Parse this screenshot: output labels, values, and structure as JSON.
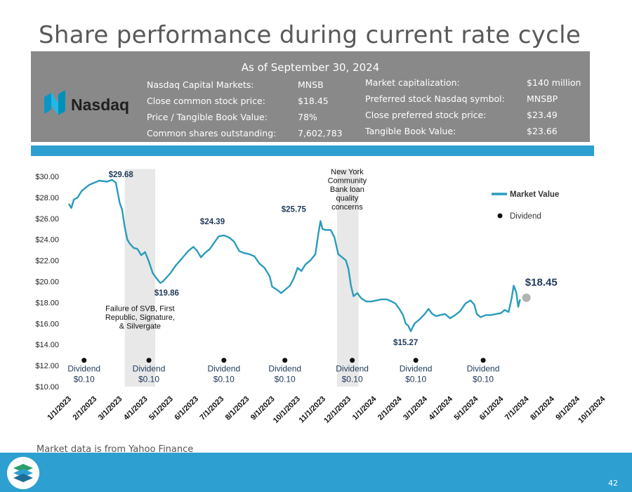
{
  "title": "Share performance during current rate cycle",
  "info": {
    "as_of": "As of September 30, 2024",
    "logo_text": "Nasdaq",
    "left_labels": [
      "Nasdaq Capital Markets:",
      "Close common stock price:",
      "Price / Tangible Book Value:",
      "Common shares outstanding:"
    ],
    "left_values": [
      "MNSB",
      "$18.45",
      "78%",
      "7,602,783"
    ],
    "right_labels": [
      "Market capitalization:",
      "Preferred stock Nasdaq symbol:",
      "Close preferred stock price:",
      "Tangible Book Value:"
    ],
    "right_values": [
      "$140 million",
      "MNSBP",
      "$23.49",
      "$23.66"
    ]
  },
  "chart_data": {
    "type": "line",
    "title": "",
    "xlabel": "",
    "ylabel": "",
    "ylim": [
      10,
      30
    ],
    "yticks": [
      "$10.00",
      "$12.00",
      "$14.00",
      "$16.00",
      "$18.00",
      "$20.00",
      "$22.00",
      "$24.00",
      "$26.00",
      "$28.00",
      "$30.00"
    ],
    "xticks": [
      "1/1/2023",
      "2/1/2023",
      "3/1/2023",
      "4/1/2023",
      "5/1/2023",
      "6/1/2023",
      "7/1/2023",
      "8/1/2023",
      "9/1/2023",
      "10/1/2023",
      "11/1/2023",
      "12/1/2023",
      "1/1/2024",
      "2/1/2024",
      "3/1/2024",
      "4/1/2024",
      "5/1/2024",
      "6/1/2024",
      "7/1/2024",
      "8/1/2024",
      "9/1/2024",
      "10/1/2024"
    ],
    "legend": {
      "market_value": "Market Value",
      "dividend": "Dividend"
    },
    "series": [
      {
        "name": "Market Value",
        "color": "#2a9cbb",
        "points": [
          [
            0,
            27.4
          ],
          [
            0.1,
            27.0
          ],
          [
            0.2,
            27.8
          ],
          [
            0.35,
            28.0
          ],
          [
            0.5,
            28.6
          ],
          [
            0.65,
            28.9
          ],
          [
            0.8,
            29.2
          ],
          [
            1.0,
            29.4
          ],
          [
            1.2,
            29.6
          ],
          [
            1.5,
            29.5
          ],
          [
            1.7,
            29.68
          ],
          [
            1.85,
            29.4
          ],
          [
            2.0,
            27.5
          ],
          [
            2.1,
            26.8
          ],
          [
            2.2,
            25.2
          ],
          [
            2.3,
            24.0
          ],
          [
            2.4,
            23.6
          ],
          [
            2.55,
            23.2
          ],
          [
            2.7,
            23.1
          ],
          [
            2.85,
            22.5
          ],
          [
            3.0,
            22.8
          ],
          [
            3.15,
            21.9
          ],
          [
            3.3,
            20.8
          ],
          [
            3.45,
            20.3
          ],
          [
            3.6,
            19.86
          ],
          [
            3.7,
            20.0
          ],
          [
            3.85,
            20.4
          ],
          [
            4.0,
            20.8
          ],
          [
            4.2,
            21.5
          ],
          [
            4.45,
            22.2
          ],
          [
            4.7,
            22.9
          ],
          [
            4.9,
            23.3
          ],
          [
            5.05,
            22.9
          ],
          [
            5.2,
            22.3
          ],
          [
            5.35,
            22.7
          ],
          [
            5.55,
            23.1
          ],
          [
            5.75,
            23.8
          ],
          [
            5.9,
            24.3
          ],
          [
            6.1,
            24.39
          ],
          [
            6.3,
            24.2
          ],
          [
            6.5,
            23.8
          ],
          [
            6.7,
            22.9
          ],
          [
            6.9,
            22.7
          ],
          [
            7.1,
            22.6
          ],
          [
            7.3,
            22.4
          ],
          [
            7.5,
            21.7
          ],
          [
            7.7,
            21.3
          ],
          [
            7.9,
            20.5
          ],
          [
            8.0,
            19.5
          ],
          [
            8.2,
            19.2
          ],
          [
            8.35,
            18.9
          ],
          [
            8.5,
            19.2
          ],
          [
            8.7,
            19.6
          ],
          [
            8.85,
            20.3
          ],
          [
            9.0,
            21.3
          ],
          [
            9.15,
            21.0
          ],
          [
            9.3,
            21.6
          ],
          [
            9.5,
            22.0
          ],
          [
            9.7,
            22.6
          ],
          [
            9.82,
            24.6
          ],
          [
            9.9,
            25.75
          ],
          [
            9.98,
            25.0
          ],
          [
            10.1,
            24.9
          ],
          [
            10.3,
            24.9
          ],
          [
            10.45,
            24.2
          ],
          [
            10.6,
            22.6
          ],
          [
            10.75,
            22.3
          ],
          [
            10.9,
            22.0
          ],
          [
            11.0,
            21.2
          ],
          [
            11.1,
            19.6
          ],
          [
            11.2,
            18.6
          ],
          [
            11.35,
            18.9
          ],
          [
            11.5,
            18.4
          ],
          [
            11.7,
            18.1
          ],
          [
            11.9,
            18.1
          ],
          [
            12.1,
            18.2
          ],
          [
            12.3,
            18.3
          ],
          [
            12.5,
            18.3
          ],
          [
            12.7,
            18.1
          ],
          [
            12.85,
            17.9
          ],
          [
            13.0,
            17.4
          ],
          [
            13.15,
            16.8
          ],
          [
            13.25,
            16.0
          ],
          [
            13.35,
            15.8
          ],
          [
            13.45,
            15.27
          ],
          [
            13.6,
            16.0
          ],
          [
            13.8,
            16.4
          ],
          [
            14.0,
            16.9
          ],
          [
            14.15,
            17.4
          ],
          [
            14.3,
            16.9
          ],
          [
            14.45,
            16.7
          ],
          [
            14.6,
            16.8
          ],
          [
            14.8,
            16.9
          ],
          [
            15.0,
            16.5
          ],
          [
            15.2,
            16.8
          ],
          [
            15.4,
            17.2
          ],
          [
            15.6,
            17.9
          ],
          [
            15.8,
            18.2
          ],
          [
            15.95,
            17.8
          ],
          [
            16.05,
            16.9
          ],
          [
            16.2,
            16.6
          ],
          [
            16.4,
            16.8
          ],
          [
            16.6,
            16.8
          ],
          [
            16.8,
            16.9
          ],
          [
            17.0,
            17.0
          ],
          [
            17.15,
            17.3
          ],
          [
            17.3,
            17.1
          ],
          [
            17.42,
            18.4
          ],
          [
            17.5,
            19.6
          ],
          [
            17.6,
            19.0
          ],
          [
            17.68,
            17.6
          ],
          [
            17.75,
            18.3
          ]
        ]
      }
    ],
    "dividends": [
      {
        "x": 0.6,
        "label": "Dividend",
        "amount": "$0.10"
      },
      {
        "x": 3.15,
        "label": "Dividend",
        "amount": "$0.10"
      },
      {
        "x": 6.1,
        "label": "Dividend",
        "amount": "$0.10"
      },
      {
        "x": 8.5,
        "label": "Dividend",
        "amount": "$0.10"
      },
      {
        "x": 11.15,
        "label": "Dividend",
        "amount": "$0.10"
      },
      {
        "x": 13.65,
        "label": "Dividend",
        "amount": "$0.10"
      },
      {
        "x": 16.3,
        "label": "Dividend",
        "amount": "$0.10"
      }
    ],
    "dividend_y": 12.5,
    "shaded_regions": [
      {
        "from": 2.2,
        "to": 3.4
      },
      {
        "from": 10.55,
        "to": 11.4
      }
    ],
    "price_labels": [
      {
        "text": "$29.68",
        "x": 2.05,
        "y": 29.68
      },
      {
        "text": "$19.86",
        "x": 3.85,
        "y": 19.86
      },
      {
        "text": "$24.39",
        "x": 5.65,
        "y": 24.39
      },
      {
        "text": "$25.75",
        "x": 8.85,
        "y": 25.75
      },
      {
        "text": "$15.27",
        "x": 13.25,
        "y": 15.27
      },
      {
        "text": "$18.45",
        "x": 17.95,
        "y": 18.45
      }
    ],
    "final_marker": {
      "x": 18.0,
      "y": 18.45
    },
    "annotations": [
      {
        "lines": [
          "Failure of SVB, First",
          "Republic, Signature,",
          "& Silvergate"
        ],
        "x": 2.8,
        "y": 17.2
      },
      {
        "lines": [
          "New York",
          "Community",
          "Bank loan",
          "quality",
          "concerns"
        ],
        "x": 10.95,
        "y": 30.2
      }
    ]
  },
  "source_note": "Market data is from Yahoo Finance",
  "page_number": "42"
}
